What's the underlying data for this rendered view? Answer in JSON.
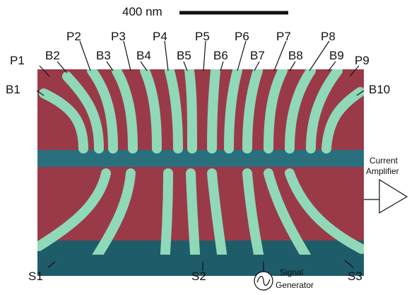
{
  "scale_bar": {
    "label": "400 nm"
  },
  "labels": {
    "P1": "P1",
    "P2": "P2",
    "P3": "P3",
    "P4": "P4",
    "P5": "P5",
    "P6": "P6",
    "P7": "P7",
    "P8": "P8",
    "P9": "P9",
    "B1": "B1",
    "B2": "B2",
    "B3": "B3",
    "B4": "B4",
    "B5": "B5",
    "B6": "B6",
    "B7": "B7",
    "B8": "B8",
    "B9": "B9",
    "B10": "B10",
    "S1": "S1",
    "S2": "S2",
    "S3": "S3"
  },
  "current_amplifier": {
    "line1": "Current",
    "line2": "Amplifier"
  },
  "signal_generator": {
    "line1": "Signal",
    "line2": "Generator"
  },
  "colors": {
    "substrate": "#1f5c6a",
    "plunger": "#9a3a48",
    "barrier": "#8fd8b8",
    "ink": "#111111"
  }
}
